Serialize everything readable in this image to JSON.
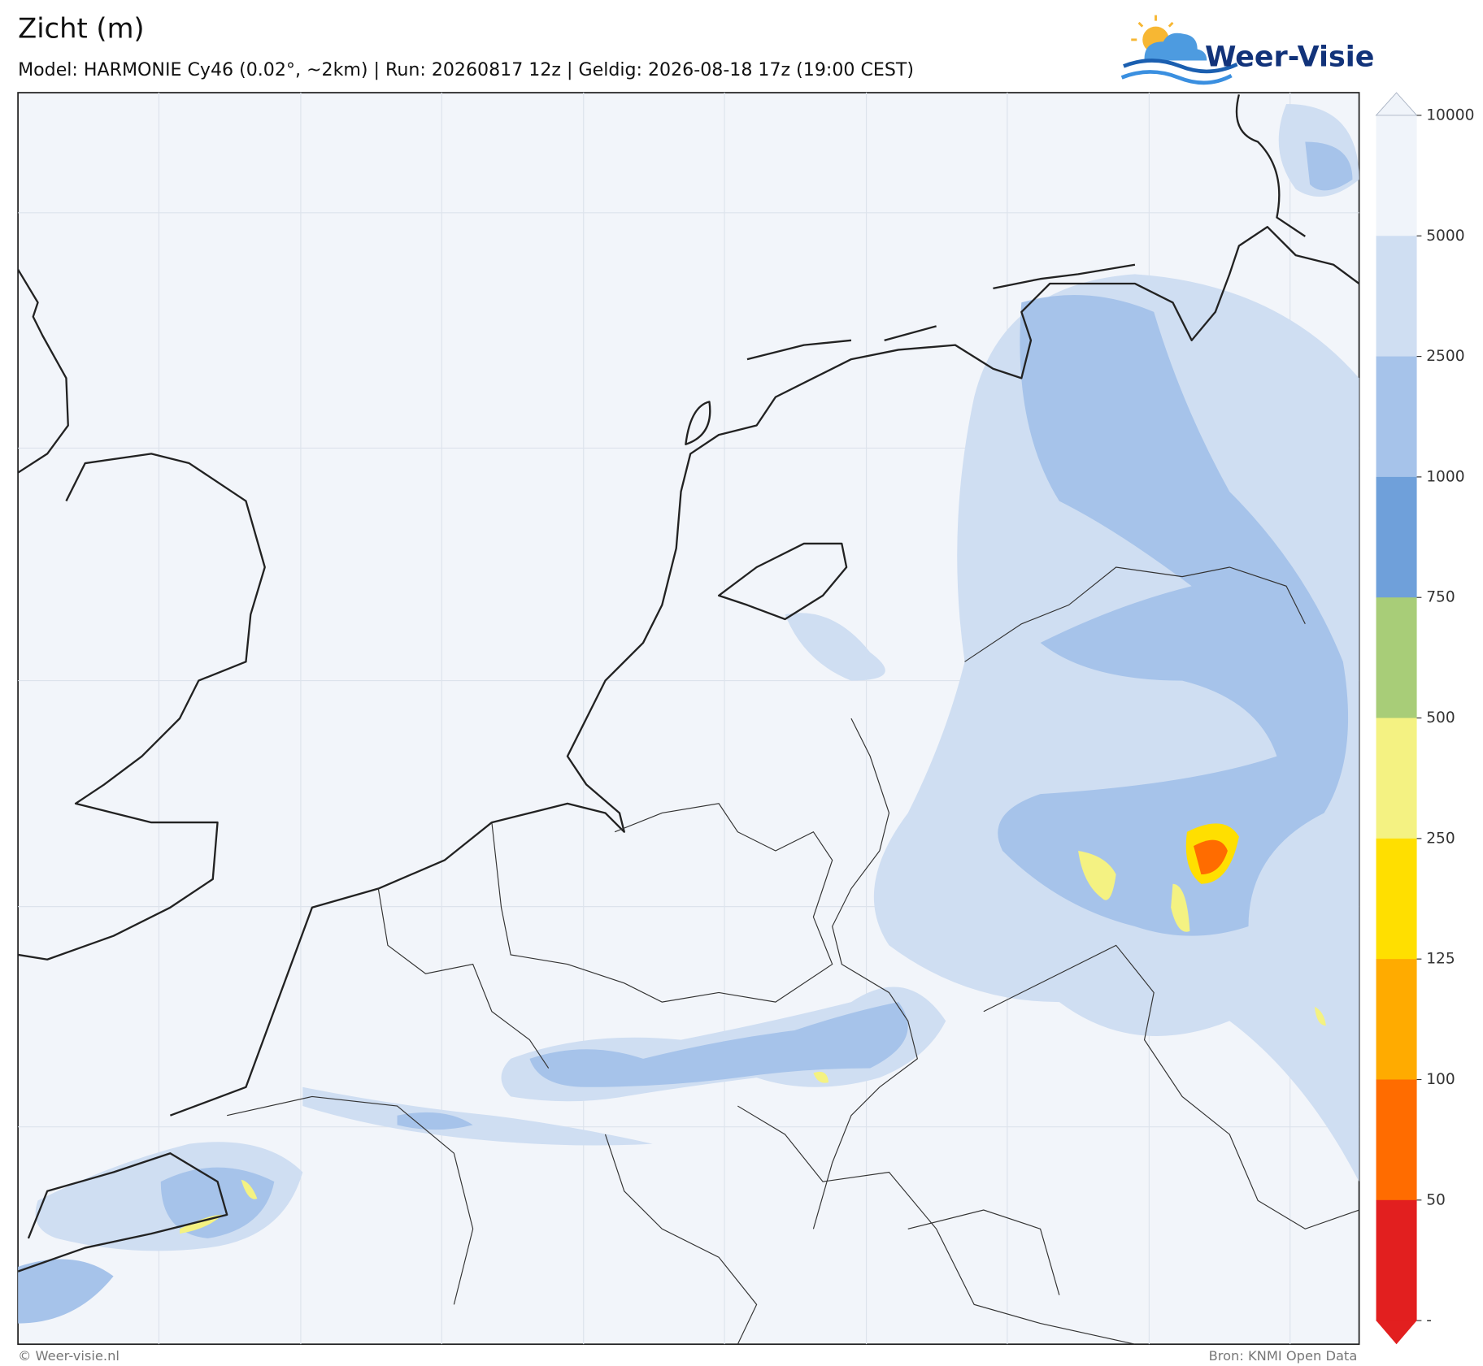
{
  "title": "Zicht (m)",
  "subtitle": "Model: HARMONIE Cy46 (0.02°, ~2km)  |  Run: 20260817 12z  |  Geldig: 2026-08-18 17z (19:00 CEST)",
  "logo_text": "Weer-Visie",
  "colorbar": {
    "ticks": [
      10000,
      5000,
      2500,
      1000,
      750,
      500,
      250,
      125,
      100,
      50
    ],
    "bottom_label": "-",
    "colors": [
      "#f0f4fa",
      "#cfdef2",
      "#a6c3ea",
      "#6fa0da",
      "#a8cd78",
      "#f4f282",
      "#ffdf00",
      "#ffab00",
      "#ff6c00",
      "#e21f1f"
    ]
  },
  "footer": {
    "left": "© Weer-visie.nl",
    "right": "Bron: KNMI Open Data"
  }
}
